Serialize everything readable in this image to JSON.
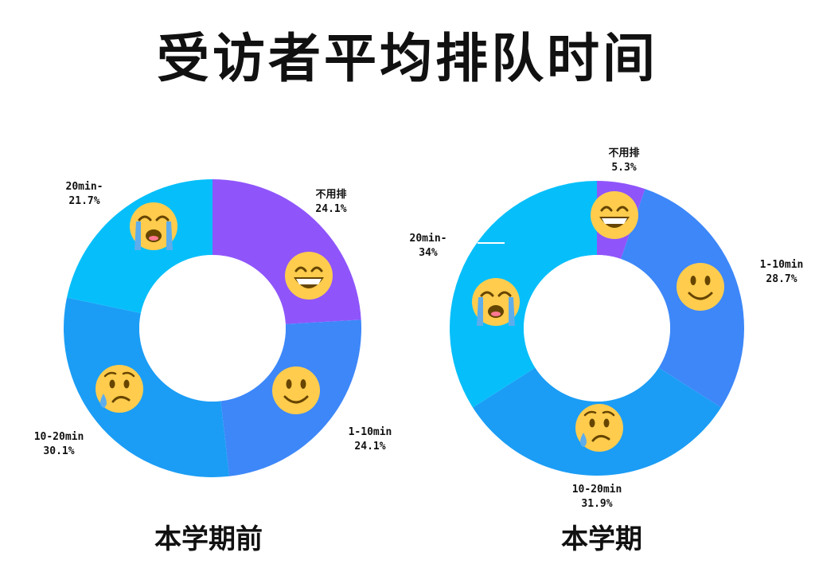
{
  "title": "受访者平均排队时间",
  "colors": {
    "purple": "#8f55fb",
    "blue": "#3d87f9",
    "mid_blue": "#1b9df5",
    "light_blue": "#06bffa"
  },
  "chart_data": [
    {
      "type": "pie",
      "caption": "本学期前",
      "categories": [
        "不用排",
        "1-10min",
        "10-20min",
        "20min-"
      ],
      "values": [
        24.1,
        24.1,
        30.1,
        21.7
      ],
      "value_labels": [
        "24.1%",
        "24.1%",
        "30.1%",
        "21.7%"
      ],
      "colors": [
        "#8f55fb",
        "#3d87f9",
        "#1b9df5",
        "#06bffa"
      ],
      "icons": [
        "grinning-face-icon",
        "smiling-face-icon",
        "sad-tear-face-icon",
        "loudly-crying-face-icon"
      ]
    },
    {
      "type": "pie",
      "caption": "本学期",
      "categories": [
        "不用排",
        "1-10min",
        "10-20min",
        "20min-"
      ],
      "values": [
        5.3,
        28.7,
        31.9,
        34
      ],
      "value_labels": [
        "5.3%",
        "28.7%",
        "31.9%",
        "34%"
      ],
      "colors": [
        "#8f55fb",
        "#3d87f9",
        "#1b9df5",
        "#06bffa"
      ],
      "icons": [
        "grinning-face-icon",
        "smiling-face-icon",
        "sad-tear-face-icon",
        "loudly-crying-face-icon"
      ]
    }
  ]
}
